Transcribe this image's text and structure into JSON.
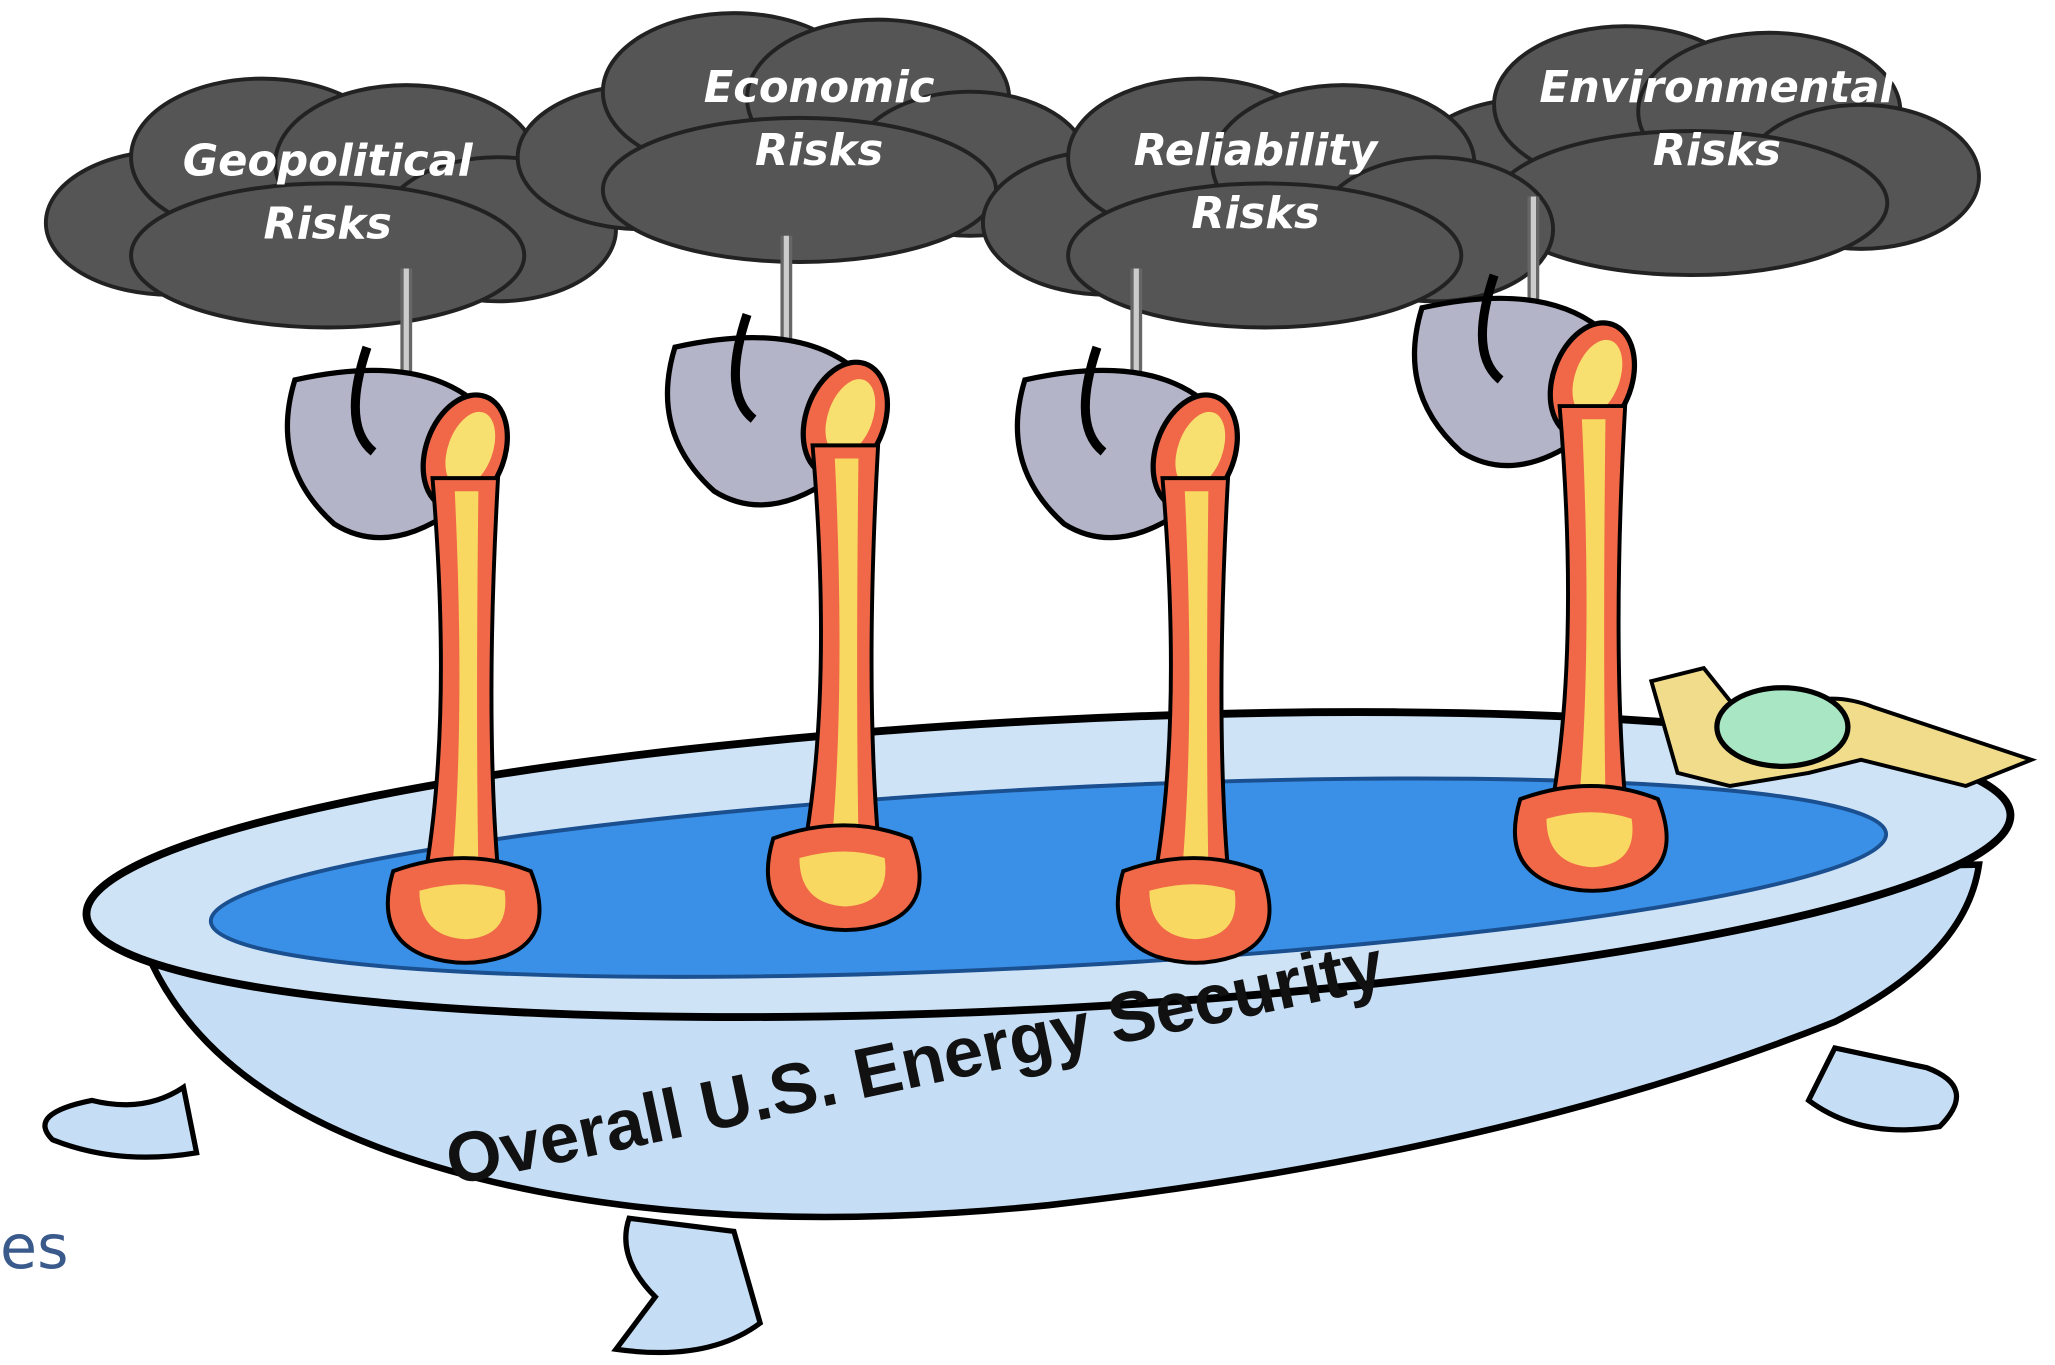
{
  "clouds": [
    {
      "label_lines": [
        "Geopolitical",
        "Risks"
      ]
    },
    {
      "label_lines": [
        "Economic",
        "Risks"
      ]
    },
    {
      "label_lines": [
        "Reliability",
        "Risks"
      ]
    },
    {
      "label_lines": [
        "Environmental",
        "Risks"
      ]
    }
  ],
  "tub_label": "Overall U.S. Energy Security",
  "fragment_text": "es"
}
